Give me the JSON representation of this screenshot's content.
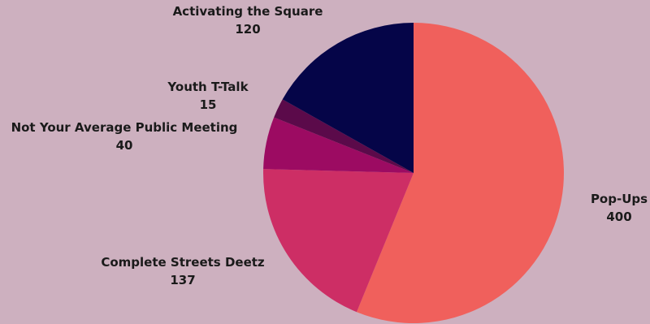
{
  "chart_data": {
    "type": "pie",
    "start_angle_deg": 0,
    "direction": "clockwise",
    "slices": [
      {
        "label": "Pop-Ups",
        "value": 400,
        "color": "#f0605c"
      },
      {
        "label": "Complete Streets Deetz",
        "value": 137,
        "color": "#cd2e65"
      },
      {
        "label": "Not Your Average Public Meeting",
        "value": 40,
        "color": "#9c0b62"
      },
      {
        "label": "Youth T-Talk",
        "value": 15,
        "color": "#5b0a4a"
      },
      {
        "label": "Activating the Square",
        "value": 120,
        "color": "#050548"
      }
    ],
    "background": "#cdb0bf"
  }
}
